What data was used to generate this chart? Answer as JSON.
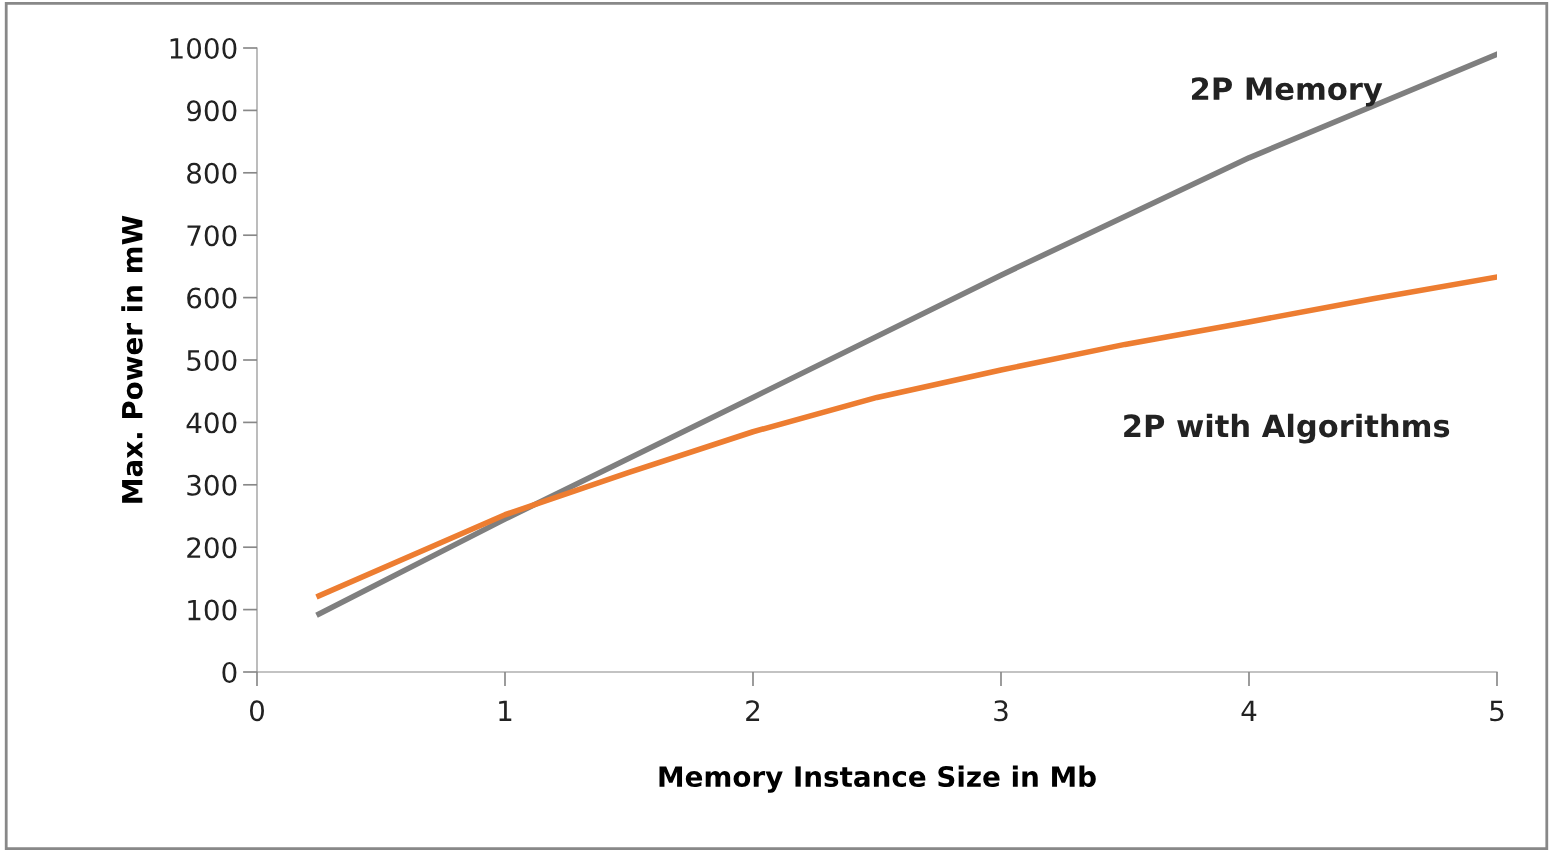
{
  "chart_data": {
    "type": "line",
    "xlabel": "Memory Instance Size in Mb",
    "ylabel": "Max. Power in mW",
    "xlim": [
      0,
      5
    ],
    "xticks": [
      0,
      1,
      2,
      3,
      4,
      5
    ],
    "ylim": [
      0,
      1000
    ],
    "yticks": [
      0,
      100,
      200,
      300,
      400,
      500,
      600,
      700,
      800,
      900,
      1000
    ],
    "grid": false,
    "legend": false,
    "marker": "none",
    "line_style": "solid",
    "series": [
      {
        "name": "2P Memory",
        "color": "#7f7f7f",
        "x": [
          0.25,
          1,
          2,
          3,
          4,
          5
        ],
        "values": [
          93,
          245,
          440,
          636,
          824,
          990
        ]
      },
      {
        "name": "2P with Algorithms",
        "color": "#ed7d31",
        "x": [
          0.25,
          1,
          1.5,
          2,
          2.5,
          3,
          3.5,
          4,
          4.5,
          5
        ],
        "values": [
          122,
          252,
          320,
          385,
          440,
          484,
          525,
          561,
          598,
          633
        ]
      }
    ]
  }
}
